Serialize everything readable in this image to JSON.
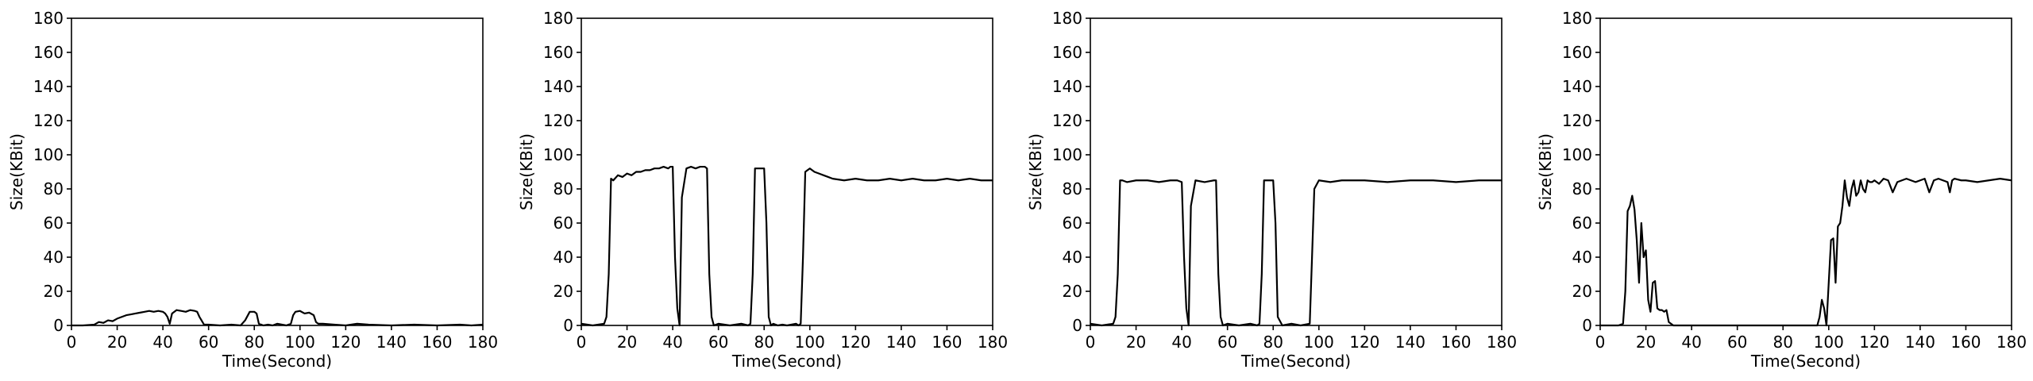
{
  "chart_data": [
    {
      "type": "line",
      "xlabel": "Time(Second)",
      "ylabel": "Size(KBit)",
      "xlim": [
        0,
        180
      ],
      "ylim": [
        0,
        180
      ],
      "xticks": [
        0,
        20,
        40,
        60,
        80,
        100,
        120,
        140,
        160,
        180
      ],
      "yticks": [
        0,
        20,
        40,
        60,
        80,
        100,
        120,
        140,
        160,
        180
      ],
      "grid": false,
      "series": [
        {
          "color": "#000000",
          "x": [
            0,
            5,
            10,
            12,
            14,
            16,
            18,
            20,
            22,
            24,
            26,
            28,
            30,
            32,
            34,
            36,
            38,
            40,
            41,
            42,
            43,
            44,
            46,
            48,
            50,
            52,
            54,
            55,
            56,
            58,
            60,
            65,
            70,
            74,
            76,
            78,
            80,
            81,
            82,
            84,
            86,
            88,
            90,
            94,
            96,
            97,
            98,
            100,
            102,
            104,
            106,
            107,
            108,
            110,
            115,
            120,
            125,
            130,
            140,
            150,
            160,
            170,
            175,
            180
          ],
          "y": [
            0,
            0,
            0.5,
            2,
            1.5,
            3,
            2.5,
            4,
            5,
            6,
            6.5,
            7,
            7.5,
            8,
            8.5,
            8,
            8.5,
            8,
            7,
            5,
            1,
            7,
            9,
            8.5,
            8,
            9,
            8.5,
            8,
            5,
            0.5,
            0.5,
            0,
            0.5,
            0,
            3,
            8,
            8,
            7,
            1,
            0,
            0.5,
            0,
            1,
            0,
            1,
            6,
            8,
            8.5,
            7,
            7.5,
            6,
            2,
            1,
            1,
            0.5,
            0,
            1,
            0.5,
            0,
            0.5,
            0,
            0.5,
            0,
            0.5
          ]
        }
      ]
    },
    {
      "type": "line",
      "xlabel": "Time(Second)",
      "ylabel": "Size(KBit)",
      "xlim": [
        0,
        180
      ],
      "ylim": [
        0,
        180
      ],
      "xticks": [
        0,
        20,
        40,
        60,
        80,
        100,
        120,
        140,
        160,
        180
      ],
      "yticks": [
        0,
        20,
        40,
        60,
        80,
        100,
        120,
        140,
        160,
        180
      ],
      "grid": false,
      "series": [
        {
          "color": "#000000",
          "x": [
            0,
            5,
            10,
            11,
            12,
            13,
            14,
            16,
            18,
            20,
            22,
            24,
            26,
            28,
            30,
            32,
            34,
            36,
            38,
            39,
            40,
            41,
            42,
            43,
            44,
            46,
            48,
            50,
            52,
            54,
            55,
            56,
            57,
            58,
            60,
            65,
            70,
            73,
            74,
            75,
            76,
            78,
            80,
            81,
            82,
            83,
            84,
            86,
            88,
            90,
            94,
            95,
            96,
            97,
            98,
            100,
            102,
            104,
            106,
            108,
            110,
            115,
            120,
            125,
            130,
            135,
            140,
            145,
            150,
            155,
            160,
            165,
            170,
            175,
            180
          ],
          "y": [
            1,
            0,
            1,
            5,
            30,
            86,
            85,
            88,
            87,
            89,
            88,
            90,
            90,
            91,
            91,
            92,
            92,
            93,
            92,
            93,
            93,
            40,
            10,
            0,
            75,
            92,
            93,
            92,
            93,
            93,
            92,
            30,
            5,
            0,
            1,
            0,
            1,
            0,
            1,
            30,
            92,
            92,
            92,
            60,
            5,
            0,
            1,
            0,
            0.5,
            0,
            1,
            0,
            1,
            40,
            90,
            92,
            90,
            89,
            88,
            87,
            86,
            85,
            86,
            85,
            85,
            86,
            85,
            86,
            85,
            85,
            86,
            85,
            86,
            85,
            85
          ]
        }
      ]
    },
    {
      "type": "line",
      "xlabel": "Time(Second)",
      "ylabel": "Size(KBit)",
      "xlim": [
        0,
        180
      ],
      "ylim": [
        0,
        180
      ],
      "xticks": [
        0,
        20,
        40,
        60,
        80,
        100,
        120,
        140,
        160,
        180
      ],
      "yticks": [
        0,
        20,
        40,
        60,
        80,
        100,
        120,
        140,
        160,
        180
      ],
      "grid": false,
      "series": [
        {
          "color": "#000000",
          "x": [
            0,
            5,
            10,
            11,
            12,
            13,
            14,
            16,
            20,
            25,
            30,
            35,
            38,
            40,
            41,
            42,
            43,
            44,
            46,
            50,
            54,
            55,
            56,
            57,
            58,
            60,
            65,
            70,
            73,
            74,
            75,
            76,
            78,
            80,
            81,
            82,
            84,
            88,
            92,
            96,
            97,
            98,
            100,
            105,
            110,
            120,
            130,
            140,
            150,
            160,
            170,
            175,
            180
          ],
          "y": [
            1,
            0,
            1,
            5,
            30,
            85,
            85,
            84,
            85,
            85,
            84,
            85,
            85,
            84,
            40,
            10,
            0,
            70,
            85,
            84,
            85,
            85,
            30,
            5,
            0,
            1,
            0,
            1,
            0,
            1,
            30,
            85,
            85,
            85,
            60,
            5,
            0,
            1,
            0,
            1,
            40,
            80,
            85,
            84,
            85,
            85,
            84,
            85,
            85,
            84,
            85,
            85,
            85
          ]
        }
      ]
    },
    {
      "type": "line",
      "xlabel": "Time(Second)",
      "ylabel": "Size(KBit)",
      "xlim": [
        0,
        180
      ],
      "ylim": [
        0,
        180
      ],
      "xticks": [
        0,
        20,
        40,
        60,
        80,
        100,
        120,
        140,
        160,
        180
      ],
      "yticks": [
        0,
        20,
        40,
        60,
        80,
        100,
        120,
        140,
        160,
        180
      ],
      "grid": false,
      "series": [
        {
          "color": "#000000",
          "x": [
            0,
            5,
            8,
            10,
            11,
            12,
            13,
            14,
            15,
            16,
            17,
            18,
            19,
            20,
            21,
            22,
            23,
            24,
            25,
            26,
            27,
            28,
            29,
            30,
            31,
            32,
            35,
            40,
            50,
            60,
            70,
            80,
            90,
            95,
            96,
            97,
            98,
            99,
            100,
            101,
            102,
            103,
            104,
            105,
            106,
            107,
            108,
            109,
            110,
            111,
            112,
            113,
            114,
            115,
            116,
            117,
            118,
            119,
            120,
            122,
            124,
            126,
            128,
            130,
            132,
            134,
            136,
            138,
            140,
            142,
            144,
            146,
            148,
            150,
            152,
            153,
            154,
            155,
            158,
            160,
            165,
            170,
            175,
            180
          ],
          "y": [
            0,
            0,
            0,
            1,
            20,
            67,
            70,
            76,
            68,
            50,
            25,
            60,
            40,
            44,
            15,
            8,
            25,
            26,
            10,
            9,
            9,
            8,
            9,
            2,
            1,
            0,
            0,
            0,
            0,
            0,
            0,
            0,
            0,
            0,
            5,
            15,
            10,
            0,
            25,
            50,
            51,
            25,
            58,
            60,
            70,
            85,
            75,
            70,
            80,
            85,
            76,
            78,
            85,
            80,
            78,
            85,
            84,
            84,
            85,
            83,
            86,
            85,
            78,
            84,
            85,
            86,
            85,
            84,
            85,
            86,
            78,
            85,
            86,
            85,
            84,
            78,
            85,
            86,
            85,
            85,
            84,
            85,
            86,
            85
          ]
        }
      ]
    }
  ]
}
